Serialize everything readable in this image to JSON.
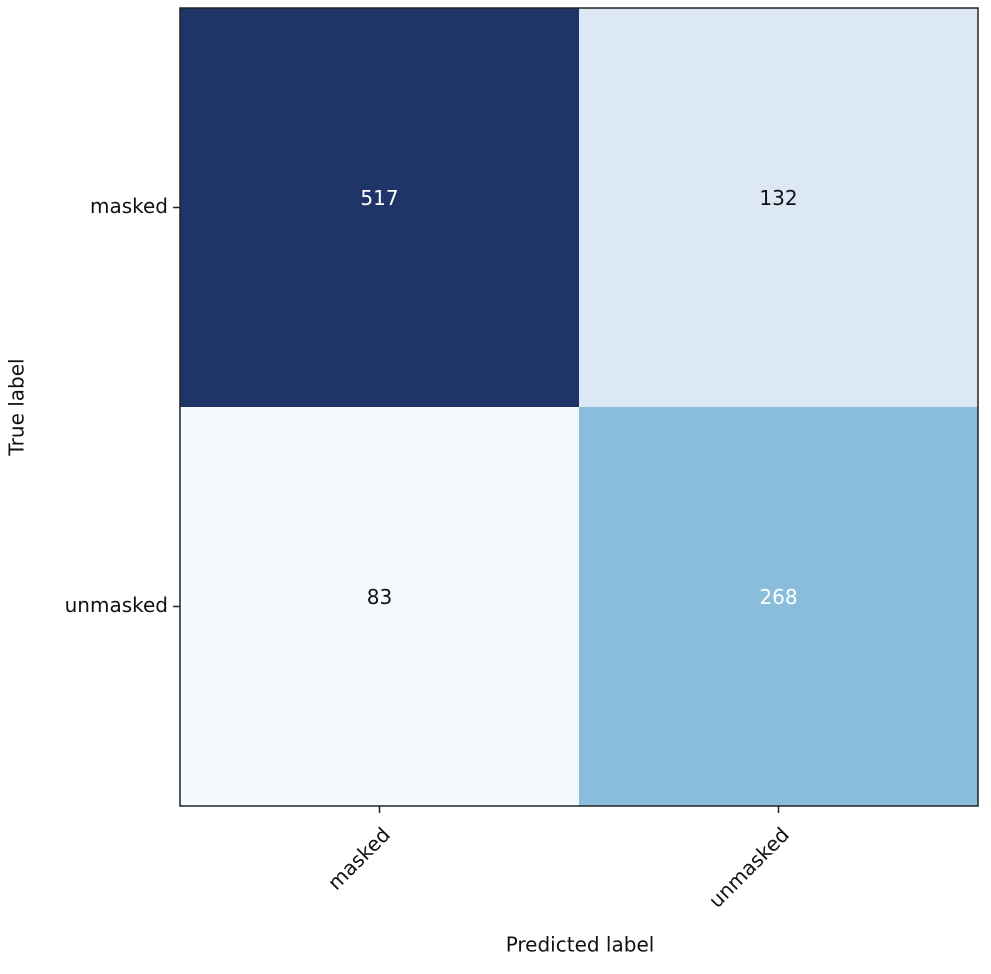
{
  "chart_data": {
    "type": "heatmap",
    "xlabel": "Predicted label",
    "ylabel": "True label",
    "x_categories": [
      "masked",
      "unmasked"
    ],
    "y_categories": [
      "masked",
      "unmasked"
    ],
    "values": [
      [
        517,
        132
      ],
      [
        83,
        268
      ]
    ],
    "cell_colors": [
      [
        "#1f3568",
        "#dde8f5"
      ],
      [
        "#f5faff",
        "#89bddb"
      ]
    ]
  }
}
